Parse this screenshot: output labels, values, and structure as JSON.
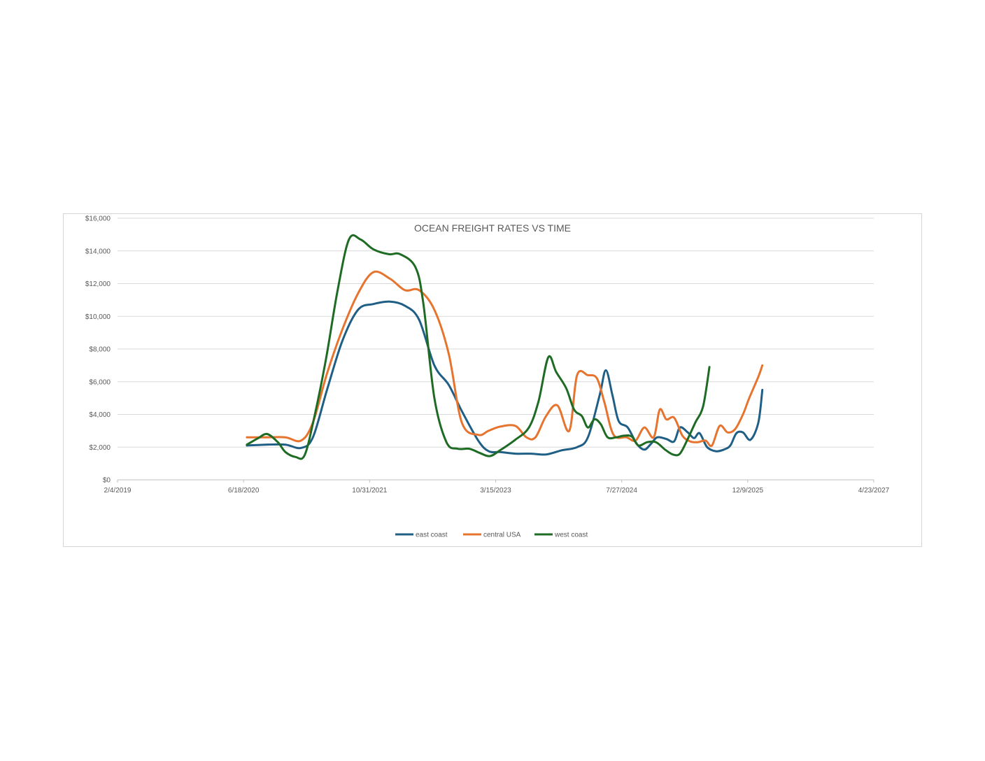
{
  "chart_data": {
    "type": "line",
    "title": "OCEAN FREIGHT RATES VS TIME",
    "xlabel": "",
    "ylabel": "",
    "x_axis": {
      "scale": "date",
      "min": "2019-02-04",
      "max": "2027-04-23",
      "tick_labels": [
        "2/4/2019",
        "6/18/2020",
        "10/31/2021",
        "3/15/2023",
        "7/27/2024",
        "12/9/2025",
        "4/23/2027"
      ]
    },
    "y_axis": {
      "min": 0,
      "max": 16000,
      "step": 2000,
      "tick_labels": [
        "$0",
        "$2,000",
        "$4,000",
        "$6,000",
        "$8,000",
        "$10,000",
        "$12,000",
        "$14,000",
        "$16,000"
      ]
    },
    "grid": "horizontal",
    "legend_position": "bottom",
    "series": [
      {
        "name": "east coast",
        "color": "#1f5f85",
        "points": [
          [
            "2020-07-01",
            2100
          ],
          [
            "2020-09-15",
            2150
          ],
          [
            "2020-12-01",
            2150
          ],
          [
            "2021-02-01",
            1950
          ],
          [
            "2021-03-20",
            2600
          ],
          [
            "2021-05-15",
            5500
          ],
          [
            "2021-07-15",
            8500
          ],
          [
            "2021-09-15",
            10400
          ],
          [
            "2021-11-15",
            10750
          ],
          [
            "2022-01-20",
            10900
          ],
          [
            "2022-03-20",
            10650
          ],
          [
            "2022-05-15",
            9800
          ],
          [
            "2022-07-15",
            7000
          ],
          [
            "2022-09-10",
            5800
          ],
          [
            "2022-11-01",
            4200
          ],
          [
            "2023-01-05",
            2400
          ],
          [
            "2023-02-15",
            1750
          ],
          [
            "2023-04-01",
            1700
          ],
          [
            "2023-06-01",
            1600
          ],
          [
            "2023-08-01",
            1600
          ],
          [
            "2023-10-01",
            1550
          ],
          [
            "2023-12-01",
            1800
          ],
          [
            "2024-02-01",
            2000
          ],
          [
            "2024-03-15",
            2600
          ],
          [
            "2024-05-01",
            5200
          ],
          [
            "2024-05-25",
            6700
          ],
          [
            "2024-06-20",
            5200
          ],
          [
            "2024-07-15",
            3600
          ],
          [
            "2024-08-20",
            3200
          ],
          [
            "2024-09-25",
            2200
          ],
          [
            "2024-10-25",
            1850
          ],
          [
            "2024-11-20",
            2200
          ],
          [
            "2024-12-15",
            2600
          ],
          [
            "2025-01-20",
            2500
          ],
          [
            "2025-02-20",
            2350
          ],
          [
            "2025-03-15",
            3200
          ],
          [
            "2025-04-15",
            2900
          ],
          [
            "2025-05-10",
            2550
          ],
          [
            "2025-06-01",
            2850
          ],
          [
            "2025-07-01",
            2000
          ],
          [
            "2025-08-05",
            1750
          ],
          [
            "2025-09-05",
            1850
          ],
          [
            "2025-10-01",
            2100
          ],
          [
            "2025-10-25",
            2850
          ],
          [
            "2025-11-20",
            2900
          ],
          [
            "2025-12-20",
            2450
          ],
          [
            "2026-01-20",
            3500
          ],
          [
            "2026-02-05",
            5500
          ]
        ]
      },
      {
        "name": "central USA",
        "color": "#e6742f",
        "points": [
          [
            "2020-07-01",
            2600
          ],
          [
            "2020-09-15",
            2600
          ],
          [
            "2020-12-01",
            2600
          ],
          [
            "2021-02-01",
            2400
          ],
          [
            "2021-03-20",
            3500
          ],
          [
            "2021-05-15",
            6500
          ],
          [
            "2021-07-15",
            9200
          ],
          [
            "2021-09-15",
            11400
          ],
          [
            "2021-11-15",
            12700
          ],
          [
            "2022-01-20",
            12300
          ],
          [
            "2022-03-20",
            11600
          ],
          [
            "2022-05-15",
            11600
          ],
          [
            "2022-07-15",
            10400
          ],
          [
            "2022-09-10",
            7700
          ],
          [
            "2022-11-01",
            3500
          ],
          [
            "2023-01-05",
            2750
          ],
          [
            "2023-02-15",
            3000
          ],
          [
            "2023-04-01",
            3250
          ],
          [
            "2023-06-01",
            3300
          ],
          [
            "2023-07-15",
            2600
          ],
          [
            "2023-08-20",
            2600
          ],
          [
            "2023-10-01",
            3900
          ],
          [
            "2023-11-15",
            4550
          ],
          [
            "2024-01-01",
            3000
          ],
          [
            "2024-02-01",
            6400
          ],
          [
            "2024-03-15",
            6400
          ],
          [
            "2024-04-20",
            6200
          ],
          [
            "2024-05-20",
            4700
          ],
          [
            "2024-06-25",
            2750
          ],
          [
            "2024-08-15",
            2600
          ],
          [
            "2024-09-20",
            2400
          ],
          [
            "2024-10-25",
            3200
          ],
          [
            "2024-12-01",
            2600
          ],
          [
            "2024-12-25",
            4300
          ],
          [
            "2025-01-20",
            3700
          ],
          [
            "2025-02-20",
            3800
          ],
          [
            "2025-03-25",
            2700
          ],
          [
            "2025-04-25",
            2350
          ],
          [
            "2025-05-25",
            2300
          ],
          [
            "2025-06-25",
            2400
          ],
          [
            "2025-07-20",
            2100
          ],
          [
            "2025-08-20",
            3300
          ],
          [
            "2025-09-20",
            2900
          ],
          [
            "2025-10-20",
            3100
          ],
          [
            "2025-11-20",
            4000
          ],
          [
            "2025-12-15",
            5000
          ],
          [
            "2026-01-20",
            6300
          ],
          [
            "2026-02-05",
            7000
          ]
        ]
      },
      {
        "name": "west coast",
        "color": "#1e6b24",
        "points": [
          [
            "2020-07-01",
            2150
          ],
          [
            "2020-08-15",
            2550
          ],
          [
            "2020-09-20",
            2800
          ],
          [
            "2020-11-01",
            2300
          ],
          [
            "2020-12-01",
            1700
          ],
          [
            "2021-01-10",
            1400
          ],
          [
            "2021-02-15",
            1500
          ],
          [
            "2021-03-25",
            3800
          ],
          [
            "2021-05-10",
            7300
          ],
          [
            "2021-06-25",
            11500
          ],
          [
            "2021-08-10",
            14700
          ],
          [
            "2021-09-25",
            14700
          ],
          [
            "2021-11-15",
            14100
          ],
          [
            "2022-01-15",
            13800
          ],
          [
            "2022-03-01",
            13800
          ],
          [
            "2022-05-01",
            13000
          ],
          [
            "2022-06-01",
            10800
          ],
          [
            "2022-07-15",
            5000
          ],
          [
            "2022-09-01",
            2300
          ],
          [
            "2022-10-15",
            1900
          ],
          [
            "2022-12-01",
            1900
          ],
          [
            "2023-01-10",
            1650
          ],
          [
            "2023-02-20",
            1450
          ],
          [
            "2023-04-01",
            1800
          ],
          [
            "2023-06-01",
            2450
          ],
          [
            "2023-07-25",
            3200
          ],
          [
            "2023-09-01",
            4800
          ],
          [
            "2023-10-10",
            7500
          ],
          [
            "2023-11-10",
            6600
          ],
          [
            "2023-12-20",
            5600
          ],
          [
            "2024-01-20",
            4300
          ],
          [
            "2024-02-20",
            3900
          ],
          [
            "2024-03-15",
            3200
          ],
          [
            "2024-04-10",
            3700
          ],
          [
            "2024-05-05",
            3400
          ],
          [
            "2024-06-01",
            2600
          ],
          [
            "2024-07-05",
            2600
          ],
          [
            "2024-08-05",
            2700
          ],
          [
            "2024-09-05",
            2650
          ],
          [
            "2024-10-01",
            2100
          ],
          [
            "2024-11-05",
            2300
          ],
          [
            "2024-12-10",
            2300
          ],
          [
            "2025-01-15",
            1850
          ],
          [
            "2025-02-15",
            1550
          ],
          [
            "2025-03-15",
            1600
          ],
          [
            "2025-04-15",
            2500
          ],
          [
            "2025-05-15",
            3500
          ],
          [
            "2025-06-15",
            4500
          ],
          [
            "2025-07-10",
            6900
          ]
        ]
      }
    ]
  }
}
